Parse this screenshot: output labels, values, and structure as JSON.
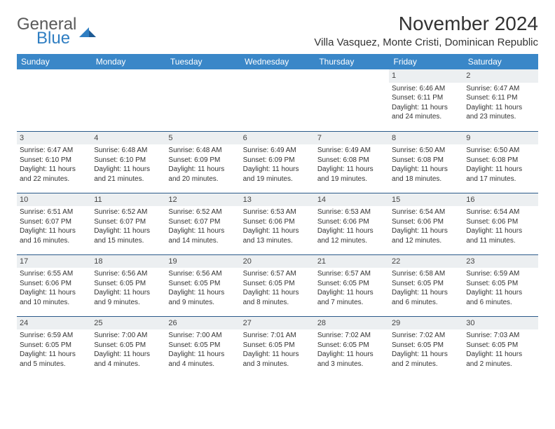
{
  "brand": {
    "general": "General",
    "blue": "Blue"
  },
  "colors": {
    "header_bg": "#3a87c8",
    "header_text": "#ffffff",
    "daynum_bg": "#eceff1",
    "row_border": "#2b5a8a",
    "logo_blue": "#2f7ec2",
    "logo_gray": "#5a5a5a"
  },
  "title": "November 2024",
  "location": "Villa Vasquez, Monte Cristi, Dominican Republic",
  "weekdays": [
    "Sunday",
    "Monday",
    "Tuesday",
    "Wednesday",
    "Thursday",
    "Friday",
    "Saturday"
  ],
  "weeks": [
    [
      {
        "n": "",
        "empty": true,
        "sr": "",
        "ss": "",
        "dl1": "",
        "dl2": ""
      },
      {
        "n": "",
        "empty": true,
        "sr": "",
        "ss": "",
        "dl1": "",
        "dl2": ""
      },
      {
        "n": "",
        "empty": true,
        "sr": "",
        "ss": "",
        "dl1": "",
        "dl2": ""
      },
      {
        "n": "",
        "empty": true,
        "sr": "",
        "ss": "",
        "dl1": "",
        "dl2": ""
      },
      {
        "n": "",
        "empty": true,
        "sr": "",
        "ss": "",
        "dl1": "",
        "dl2": ""
      },
      {
        "n": "1",
        "sr": "Sunrise: 6:46 AM",
        "ss": "Sunset: 6:11 PM",
        "dl1": "Daylight: 11 hours",
        "dl2": "and 24 minutes."
      },
      {
        "n": "2",
        "sr": "Sunrise: 6:47 AM",
        "ss": "Sunset: 6:11 PM",
        "dl1": "Daylight: 11 hours",
        "dl2": "and 23 minutes."
      }
    ],
    [
      {
        "n": "3",
        "sr": "Sunrise: 6:47 AM",
        "ss": "Sunset: 6:10 PM",
        "dl1": "Daylight: 11 hours",
        "dl2": "and 22 minutes."
      },
      {
        "n": "4",
        "sr": "Sunrise: 6:48 AM",
        "ss": "Sunset: 6:10 PM",
        "dl1": "Daylight: 11 hours",
        "dl2": "and 21 minutes."
      },
      {
        "n": "5",
        "sr": "Sunrise: 6:48 AM",
        "ss": "Sunset: 6:09 PM",
        "dl1": "Daylight: 11 hours",
        "dl2": "and 20 minutes."
      },
      {
        "n": "6",
        "sr": "Sunrise: 6:49 AM",
        "ss": "Sunset: 6:09 PM",
        "dl1": "Daylight: 11 hours",
        "dl2": "and 19 minutes."
      },
      {
        "n": "7",
        "sr": "Sunrise: 6:49 AM",
        "ss": "Sunset: 6:08 PM",
        "dl1": "Daylight: 11 hours",
        "dl2": "and 19 minutes."
      },
      {
        "n": "8",
        "sr": "Sunrise: 6:50 AM",
        "ss": "Sunset: 6:08 PM",
        "dl1": "Daylight: 11 hours",
        "dl2": "and 18 minutes."
      },
      {
        "n": "9",
        "sr": "Sunrise: 6:50 AM",
        "ss": "Sunset: 6:08 PM",
        "dl1": "Daylight: 11 hours",
        "dl2": "and 17 minutes."
      }
    ],
    [
      {
        "n": "10",
        "sr": "Sunrise: 6:51 AM",
        "ss": "Sunset: 6:07 PM",
        "dl1": "Daylight: 11 hours",
        "dl2": "and 16 minutes."
      },
      {
        "n": "11",
        "sr": "Sunrise: 6:52 AM",
        "ss": "Sunset: 6:07 PM",
        "dl1": "Daylight: 11 hours",
        "dl2": "and 15 minutes."
      },
      {
        "n": "12",
        "sr": "Sunrise: 6:52 AM",
        "ss": "Sunset: 6:07 PM",
        "dl1": "Daylight: 11 hours",
        "dl2": "and 14 minutes."
      },
      {
        "n": "13",
        "sr": "Sunrise: 6:53 AM",
        "ss": "Sunset: 6:06 PM",
        "dl1": "Daylight: 11 hours",
        "dl2": "and 13 minutes."
      },
      {
        "n": "14",
        "sr": "Sunrise: 6:53 AM",
        "ss": "Sunset: 6:06 PM",
        "dl1": "Daylight: 11 hours",
        "dl2": "and 12 minutes."
      },
      {
        "n": "15",
        "sr": "Sunrise: 6:54 AM",
        "ss": "Sunset: 6:06 PM",
        "dl1": "Daylight: 11 hours",
        "dl2": "and 12 minutes."
      },
      {
        "n": "16",
        "sr": "Sunrise: 6:54 AM",
        "ss": "Sunset: 6:06 PM",
        "dl1": "Daylight: 11 hours",
        "dl2": "and 11 minutes."
      }
    ],
    [
      {
        "n": "17",
        "sr": "Sunrise: 6:55 AM",
        "ss": "Sunset: 6:06 PM",
        "dl1": "Daylight: 11 hours",
        "dl2": "and 10 minutes."
      },
      {
        "n": "18",
        "sr": "Sunrise: 6:56 AM",
        "ss": "Sunset: 6:05 PM",
        "dl1": "Daylight: 11 hours",
        "dl2": "and 9 minutes."
      },
      {
        "n": "19",
        "sr": "Sunrise: 6:56 AM",
        "ss": "Sunset: 6:05 PM",
        "dl1": "Daylight: 11 hours",
        "dl2": "and 9 minutes."
      },
      {
        "n": "20",
        "sr": "Sunrise: 6:57 AM",
        "ss": "Sunset: 6:05 PM",
        "dl1": "Daylight: 11 hours",
        "dl2": "and 8 minutes."
      },
      {
        "n": "21",
        "sr": "Sunrise: 6:57 AM",
        "ss": "Sunset: 6:05 PM",
        "dl1": "Daylight: 11 hours",
        "dl2": "and 7 minutes."
      },
      {
        "n": "22",
        "sr": "Sunrise: 6:58 AM",
        "ss": "Sunset: 6:05 PM",
        "dl1": "Daylight: 11 hours",
        "dl2": "and 6 minutes."
      },
      {
        "n": "23",
        "sr": "Sunrise: 6:59 AM",
        "ss": "Sunset: 6:05 PM",
        "dl1": "Daylight: 11 hours",
        "dl2": "and 6 minutes."
      }
    ],
    [
      {
        "n": "24",
        "sr": "Sunrise: 6:59 AM",
        "ss": "Sunset: 6:05 PM",
        "dl1": "Daylight: 11 hours",
        "dl2": "and 5 minutes."
      },
      {
        "n": "25",
        "sr": "Sunrise: 7:00 AM",
        "ss": "Sunset: 6:05 PM",
        "dl1": "Daylight: 11 hours",
        "dl2": "and 4 minutes."
      },
      {
        "n": "26",
        "sr": "Sunrise: 7:00 AM",
        "ss": "Sunset: 6:05 PM",
        "dl1": "Daylight: 11 hours",
        "dl2": "and 4 minutes."
      },
      {
        "n": "27",
        "sr": "Sunrise: 7:01 AM",
        "ss": "Sunset: 6:05 PM",
        "dl1": "Daylight: 11 hours",
        "dl2": "and 3 minutes."
      },
      {
        "n": "28",
        "sr": "Sunrise: 7:02 AM",
        "ss": "Sunset: 6:05 PM",
        "dl1": "Daylight: 11 hours",
        "dl2": "and 3 minutes."
      },
      {
        "n": "29",
        "sr": "Sunrise: 7:02 AM",
        "ss": "Sunset: 6:05 PM",
        "dl1": "Daylight: 11 hours",
        "dl2": "and 2 minutes."
      },
      {
        "n": "30",
        "sr": "Sunrise: 7:03 AM",
        "ss": "Sunset: 6:05 PM",
        "dl1": "Daylight: 11 hours",
        "dl2": "and 2 minutes."
      }
    ]
  ]
}
